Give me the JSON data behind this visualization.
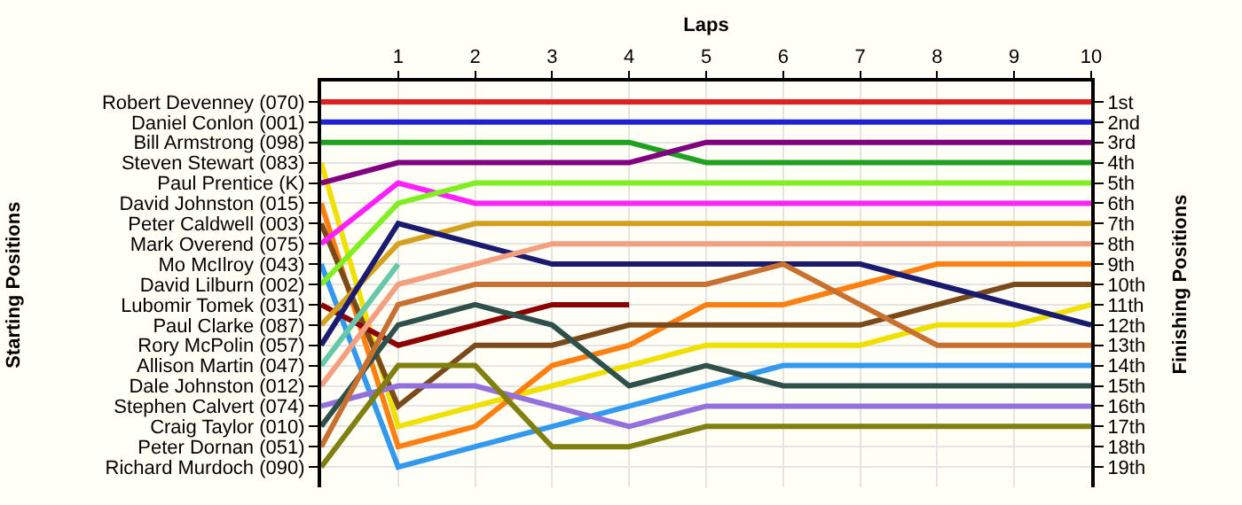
{
  "chart_data": {
    "type": "line",
    "xlabel": "Laps",
    "annotations": [
      "Starting Positions"
    ],
    "y2label": "Finishing Positions",
    "x": [
      0,
      1,
      2,
      3,
      4,
      5,
      6,
      7,
      8,
      9,
      10
    ],
    "xlim": [
      0,
      10
    ],
    "xticks": [
      1,
      2,
      3,
      4,
      5,
      6,
      7,
      8,
      9,
      10
    ],
    "y2lim": [
      20,
      0
    ],
    "y2ticks": [
      {
        "value": 1,
        "label": "1st"
      },
      {
        "value": 2,
        "label": "2nd"
      },
      {
        "value": 3,
        "label": "3rd"
      },
      {
        "value": 4,
        "label": "4th"
      },
      {
        "value": 5,
        "label": "5th"
      },
      {
        "value": 6,
        "label": "6th"
      },
      {
        "value": 7,
        "label": "7th"
      },
      {
        "value": 8,
        "label": "8th"
      },
      {
        "value": 9,
        "label": "9th"
      },
      {
        "value": 10,
        "label": "10th"
      },
      {
        "value": 11,
        "label": "11th"
      },
      {
        "value": 12,
        "label": "12th"
      },
      {
        "value": 13,
        "label": "13th"
      },
      {
        "value": 14,
        "label": "14th"
      },
      {
        "value": 15,
        "label": "15th"
      },
      {
        "value": 16,
        "label": "16th"
      },
      {
        "value": 17,
        "label": "17th"
      },
      {
        "value": 18,
        "label": "18th"
      },
      {
        "value": 19,
        "label": "19th"
      }
    ],
    "grid": true,
    "marker": "none",
    "line_style": "solid",
    "series": [
      {
        "name": "Robert Devenney (070)",
        "axis": "y2",
        "color": "#e02020",
        "values": [
          1,
          1,
          1,
          1,
          1,
          1,
          1,
          1,
          1,
          1,
          1
        ]
      },
      {
        "name": "Daniel Conlon (001)",
        "axis": "y2",
        "color": "#2020d8",
        "values": [
          2,
          2,
          2,
          2,
          2,
          2,
          2,
          2,
          2,
          2,
          2
        ]
      },
      {
        "name": "Bill Armstrong (098)",
        "axis": "y2",
        "color": "#20a020",
        "values": [
          3,
          3,
          3,
          3,
          3,
          4,
          4,
          4,
          4,
          4,
          4
        ]
      },
      {
        "name": "Steven Stewart (083)",
        "axis": "y2",
        "color": "#f0e000",
        "values": [
          4,
          17,
          16,
          15,
          14,
          13,
          13,
          13,
          12,
          12,
          11
        ]
      },
      {
        "name": "Paul Prentice (K)",
        "axis": "y2",
        "color": "#800080",
        "values": [
          5,
          4,
          4,
          4,
          4,
          3,
          3,
          3,
          3,
          3,
          3
        ]
      },
      {
        "name": "David Johnston (015)",
        "axis": "y2",
        "color": "#ff8010",
        "values": [
          6,
          18,
          17,
          14,
          13,
          11,
          11,
          10,
          9,
          9,
          9
        ]
      },
      {
        "name": "Peter Caldwell (003)",
        "axis": "y2",
        "color": "#7a4a1a",
        "values": [
          7,
          16,
          13,
          13,
          12,
          12,
          12,
          12,
          11,
          10,
          10
        ]
      },
      {
        "name": "Mark Overend (075)",
        "axis": "y2",
        "color": "#ff20ff",
        "values": [
          8,
          5,
          6,
          6,
          6,
          6,
          6,
          6,
          6,
          6,
          6
        ]
      },
      {
        "name": "Mo McIlroy (043)",
        "axis": "y2",
        "color": "#3399ee",
        "values": [
          9,
          19,
          18,
          17,
          16,
          15,
          14,
          14,
          14,
          14,
          14
        ]
      },
      {
        "name": "David Lilburn (002)",
        "axis": "y2",
        "color": "#80ee20",
        "values": [
          10,
          6,
          5,
          5,
          5,
          5,
          5,
          5,
          5,
          5,
          5
        ]
      },
      {
        "name": "Lubomir Tomek (031)",
        "axis": "y2",
        "color": "#8b0000",
        "values": [
          11,
          13,
          12,
          11,
          11,
          null,
          null,
          null,
          null,
          null,
          null
        ]
      },
      {
        "name": "Paul Clarke (087)",
        "axis": "y2",
        "color": "#d4a020",
        "values": [
          12,
          8,
          7,
          7,
          7,
          7,
          7,
          7,
          7,
          7,
          7
        ]
      },
      {
        "name": "Rory McPolin (057)",
        "axis": "y2",
        "color": "#1a1a6e",
        "values": [
          13,
          7,
          8,
          9,
          9,
          9,
          9,
          9,
          10,
          11,
          12
        ]
      },
      {
        "name": "Allison Martin (047)",
        "axis": "y2",
        "color": "#66c8a8",
        "values": [
          14,
          9,
          null,
          null,
          null,
          null,
          null,
          null,
          null,
          null,
          null
        ]
      },
      {
        "name": "Dale Johnston (012)",
        "axis": "y2",
        "color": "#f4a080",
        "values": [
          15,
          10,
          9,
          8,
          8,
          8,
          8,
          8,
          8,
          8,
          8
        ]
      },
      {
        "name": "Stephen Calvert (074)",
        "axis": "y2",
        "color": "#9370db",
        "values": [
          16,
          15,
          15,
          16,
          17,
          16,
          16,
          16,
          16,
          16,
          16
        ]
      },
      {
        "name": "Craig Taylor (010)",
        "axis": "y2",
        "color": "#2f4f4a",
        "values": [
          17,
          12,
          11,
          12,
          15,
          14,
          15,
          15,
          15,
          15,
          15
        ]
      },
      {
        "name": "Peter Dornan (051)",
        "axis": "y2",
        "color": "#c87030",
        "values": [
          18,
          11,
          10,
          10,
          10,
          10,
          9,
          11,
          13,
          13,
          13
        ]
      },
      {
        "name": "Richard Murdoch (090)",
        "axis": "y2",
        "color": "#808010",
        "values": [
          19,
          14,
          14,
          18,
          18,
          17,
          17,
          17,
          17,
          17,
          17
        ]
      }
    ]
  }
}
